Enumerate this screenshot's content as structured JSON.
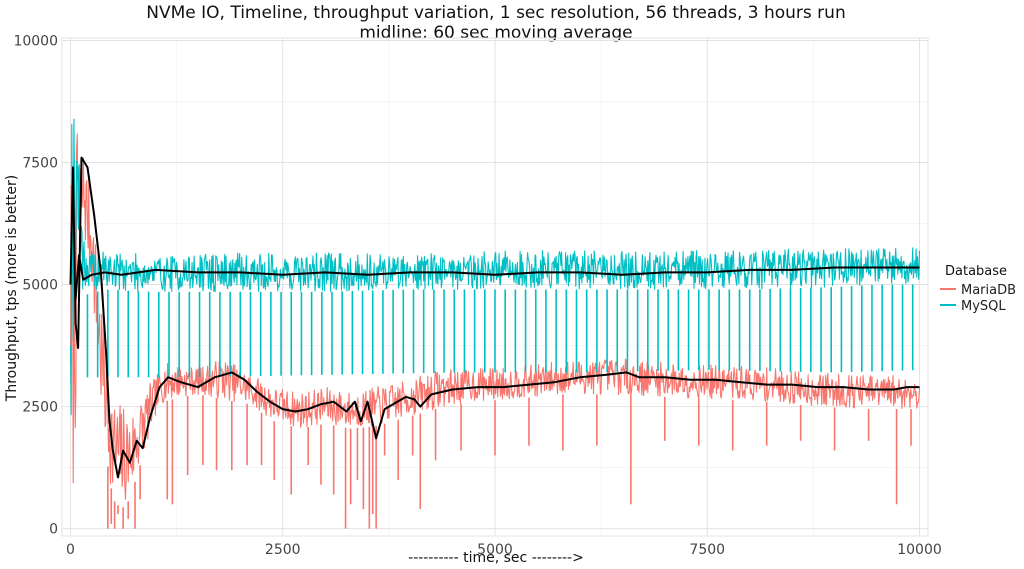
{
  "chart_data": {
    "type": "line",
    "title": "NVMe IO, Timeline, throughput variation, 1 sec resolution, 56 threads, 3 hours run",
    "subtitle": "midline: 60 sec moving average",
    "xlabel": "---------- time, sec -------->",
    "ylabel": "Throughput, tps (more is better)",
    "xlim": [
      -100,
      10100
    ],
    "ylim": [
      -150,
      10050
    ],
    "x_ticks": [
      0,
      2500,
      5000,
      7500,
      10000
    ],
    "y_ticks": [
      0,
      2500,
      5000,
      7500,
      10000
    ],
    "grid": true,
    "legend": {
      "title": "Database",
      "position": "right",
      "entries": [
        "MariaDB",
        "MySQL"
      ]
    },
    "series": [
      {
        "name": "MariaDB",
        "color": "#F8766D",
        "upper_envelope": [
          [
            0,
            7800
          ],
          [
            40,
            6500
          ],
          [
            80,
            8200
          ],
          [
            150,
            7900
          ],
          [
            250,
            6800
          ],
          [
            350,
            5000
          ],
          [
            420,
            3800
          ],
          [
            500,
            2700
          ],
          [
            600,
            2600
          ],
          [
            700,
            2400
          ],
          [
            800,
            2600
          ],
          [
            900,
            2900
          ],
          [
            1000,
            3100
          ],
          [
            1100,
            3400
          ],
          [
            1300,
            3350
          ],
          [
            1500,
            3300
          ],
          [
            1800,
            3500
          ],
          [
            2100,
            3200
          ],
          [
            2400,
            2900
          ],
          [
            2700,
            2800
          ],
          [
            3000,
            2900
          ],
          [
            3300,
            2800
          ],
          [
            3600,
            2900
          ],
          [
            3900,
            3000
          ],
          [
            4300,
            3250
          ],
          [
            4700,
            3300
          ],
          [
            5200,
            3300
          ],
          [
            5800,
            3450
          ],
          [
            6400,
            3500
          ],
          [
            7000,
            3400
          ],
          [
            7600,
            3350
          ],
          [
            8200,
            3300
          ],
          [
            8800,
            3200
          ],
          [
            9400,
            3150
          ],
          [
            10000,
            3150
          ]
        ],
        "lower_envelope": [
          [
            0,
            2000
          ],
          [
            40,
            300
          ],
          [
            80,
            4000
          ],
          [
            150,
            6000
          ],
          [
            250,
            5000
          ],
          [
            350,
            2500
          ],
          [
            420,
            1500
          ],
          [
            500,
            600
          ],
          [
            600,
            400
          ],
          [
            700,
            600
          ],
          [
            800,
            1200
          ],
          [
            900,
            1700
          ],
          [
            1000,
            2300
          ],
          [
            1100,
            2600
          ],
          [
            1300,
            2700
          ],
          [
            1500,
            2750
          ],
          [
            1800,
            2650
          ],
          [
            2100,
            2550
          ],
          [
            2400,
            2200
          ],
          [
            2700,
            2050
          ],
          [
            3000,
            2150
          ],
          [
            3300,
            2050
          ],
          [
            3600,
            2100
          ],
          [
            3900,
            2250
          ],
          [
            4300,
            2450
          ],
          [
            4700,
            2600
          ],
          [
            5200,
            2650
          ],
          [
            5800,
            2750
          ],
          [
            6400,
            2750
          ],
          [
            7000,
            2700
          ],
          [
            7600,
            2650
          ],
          [
            8200,
            2600
          ],
          [
            8800,
            2500
          ],
          [
            9400,
            2450
          ],
          [
            10000,
            2450
          ]
        ],
        "dips": [
          [
            440,
            0
          ],
          [
            480,
            100
          ],
          [
            520,
            0
          ],
          [
            560,
            300
          ],
          [
            620,
            0
          ],
          [
            680,
            200
          ],
          [
            760,
            0
          ],
          [
            820,
            600
          ],
          [
            1140,
            600
          ],
          [
            1200,
            500
          ],
          [
            1380,
            1100
          ],
          [
            1560,
            1300
          ],
          [
            1720,
            1200
          ],
          [
            1900,
            1200
          ],
          [
            2080,
            1300
          ],
          [
            2250,
            1300
          ],
          [
            2400,
            1000
          ],
          [
            2600,
            700
          ],
          [
            2800,
            1300
          ],
          [
            2950,
            900
          ],
          [
            3100,
            700
          ],
          [
            3240,
            0
          ],
          [
            3300,
            500
          ],
          [
            3380,
            1000
          ],
          [
            3450,
            400
          ],
          [
            3520,
            0
          ],
          [
            3560,
            300
          ],
          [
            3600,
            0
          ],
          [
            3700,
            1500
          ],
          [
            3860,
            1000
          ],
          [
            4030,
            1500
          ],
          [
            4120,
            400
          ],
          [
            4300,
            1400
          ],
          [
            4600,
            1600
          ],
          [
            5000,
            1500
          ],
          [
            5400,
            1700
          ],
          [
            5800,
            1600
          ],
          [
            6200,
            1700
          ],
          [
            6600,
            500
          ],
          [
            7000,
            1800
          ],
          [
            7400,
            1700
          ],
          [
            7800,
            1600
          ],
          [
            8200,
            1700
          ],
          [
            8600,
            1800
          ],
          [
            9000,
            1600
          ],
          [
            9400,
            1800
          ],
          [
            9730,
            500
          ],
          [
            9900,
            1700
          ]
        ]
      },
      {
        "name": "MySQL",
        "color": "#00BFC4",
        "upper_envelope": [
          [
            0,
            9500
          ],
          [
            40,
            9300
          ],
          [
            80,
            8000
          ],
          [
            120,
            7200
          ],
          [
            200,
            5700
          ],
          [
            400,
            5700
          ],
          [
            1000,
            5600
          ],
          [
            2000,
            5650
          ],
          [
            3000,
            5650
          ],
          [
            4000,
            5650
          ],
          [
            5000,
            5700
          ],
          [
            6000,
            5700
          ],
          [
            7000,
            5700
          ],
          [
            8000,
            5700
          ],
          [
            9000,
            5750
          ],
          [
            9500,
            5800
          ],
          [
            10000,
            5800
          ]
        ],
        "lower_envelope": [
          [
            0,
            1900
          ],
          [
            40,
            4000
          ],
          [
            80,
            6500
          ],
          [
            120,
            4800
          ],
          [
            200,
            4800
          ],
          [
            400,
            4900
          ],
          [
            1000,
            4850
          ],
          [
            2000,
            4850
          ],
          [
            3000,
            4850
          ],
          [
            4000,
            4900
          ],
          [
            5000,
            4900
          ],
          [
            6000,
            4900
          ],
          [
            7000,
            4900
          ],
          [
            8000,
            4900
          ],
          [
            9000,
            4950
          ],
          [
            9500,
            5000
          ],
          [
            10000,
            5000
          ]
        ],
        "dip_period": 120,
        "dip_floor": [
          [
            0,
            3100
          ],
          [
            1500,
            3100
          ],
          [
            3000,
            3150
          ],
          [
            4500,
            3200
          ],
          [
            6000,
            3200
          ],
          [
            7500,
            3250
          ],
          [
            9000,
            3200
          ],
          [
            10000,
            3250
          ]
        ]
      },
      {
        "name": "",
        "color": "#000000",
        "values": [
          [
            0,
            5000
          ],
          [
            30,
            7400
          ],
          [
            60,
            4200
          ],
          [
            90,
            3700
          ],
          [
            130,
            7600
          ],
          [
            200,
            7400
          ],
          [
            280,
            6400
          ],
          [
            360,
            5200
          ],
          [
            420,
            3600
          ],
          [
            460,
            2200
          ],
          [
            500,
            1600
          ],
          [
            560,
            1050
          ],
          [
            620,
            1600
          ],
          [
            700,
            1350
          ],
          [
            780,
            1800
          ],
          [
            850,
            1650
          ],
          [
            940,
            2300
          ],
          [
            1050,
            2900
          ],
          [
            1150,
            3100
          ],
          [
            1300,
            3000
          ],
          [
            1500,
            2900
          ],
          [
            1700,
            3100
          ],
          [
            1900,
            3200
          ],
          [
            2050,
            3050
          ],
          [
            2200,
            2800
          ],
          [
            2350,
            2600
          ],
          [
            2500,
            2450
          ],
          [
            2650,
            2400
          ],
          [
            2800,
            2450
          ],
          [
            2950,
            2550
          ],
          [
            3100,
            2600
          ],
          [
            3250,
            2400
          ],
          [
            3350,
            2600
          ],
          [
            3420,
            2200
          ],
          [
            3500,
            2600
          ],
          [
            3600,
            1850
          ],
          [
            3700,
            2450
          ],
          [
            3850,
            2600
          ],
          [
            3950,
            2700
          ],
          [
            4050,
            2650
          ],
          [
            4120,
            2500
          ],
          [
            4250,
            2750
          ],
          [
            4500,
            2850
          ],
          [
            4800,
            2900
          ],
          [
            5100,
            2900
          ],
          [
            5400,
            2950
          ],
          [
            5700,
            3000
          ],
          [
            6000,
            3100
          ],
          [
            6300,
            3150
          ],
          [
            6550,
            3200
          ],
          [
            6700,
            3100
          ],
          [
            7000,
            3100
          ],
          [
            7300,
            3050
          ],
          [
            7600,
            3050
          ],
          [
            7900,
            3000
          ],
          [
            8200,
            2950
          ],
          [
            8500,
            2950
          ],
          [
            8800,
            2900
          ],
          [
            9100,
            2900
          ],
          [
            9400,
            2850
          ],
          [
            9700,
            2850
          ],
          [
            9850,
            2900
          ],
          [
            10000,
            2900
          ]
        ]
      },
      {
        "name": "",
        "color": "#000000",
        "values": [
          [
            60,
            4700
          ],
          [
            100,
            5600
          ],
          [
            150,
            5100
          ],
          [
            250,
            5200
          ],
          [
            400,
            5250
          ],
          [
            600,
            5200
          ],
          [
            800,
            5250
          ],
          [
            1000,
            5300
          ],
          [
            1500,
            5250
          ],
          [
            2000,
            5250
          ],
          [
            2500,
            5200
          ],
          [
            3000,
            5250
          ],
          [
            3500,
            5200
          ],
          [
            4000,
            5250
          ],
          [
            4500,
            5250
          ],
          [
            5000,
            5200
          ],
          [
            5500,
            5250
          ],
          [
            6000,
            5250
          ],
          [
            6500,
            5200
          ],
          [
            7000,
            5250
          ],
          [
            7500,
            5250
          ],
          [
            8000,
            5300
          ],
          [
            8500,
            5300
          ],
          [
            9000,
            5350
          ],
          [
            9500,
            5350
          ],
          [
            10000,
            5350
          ]
        ]
      }
    ]
  }
}
